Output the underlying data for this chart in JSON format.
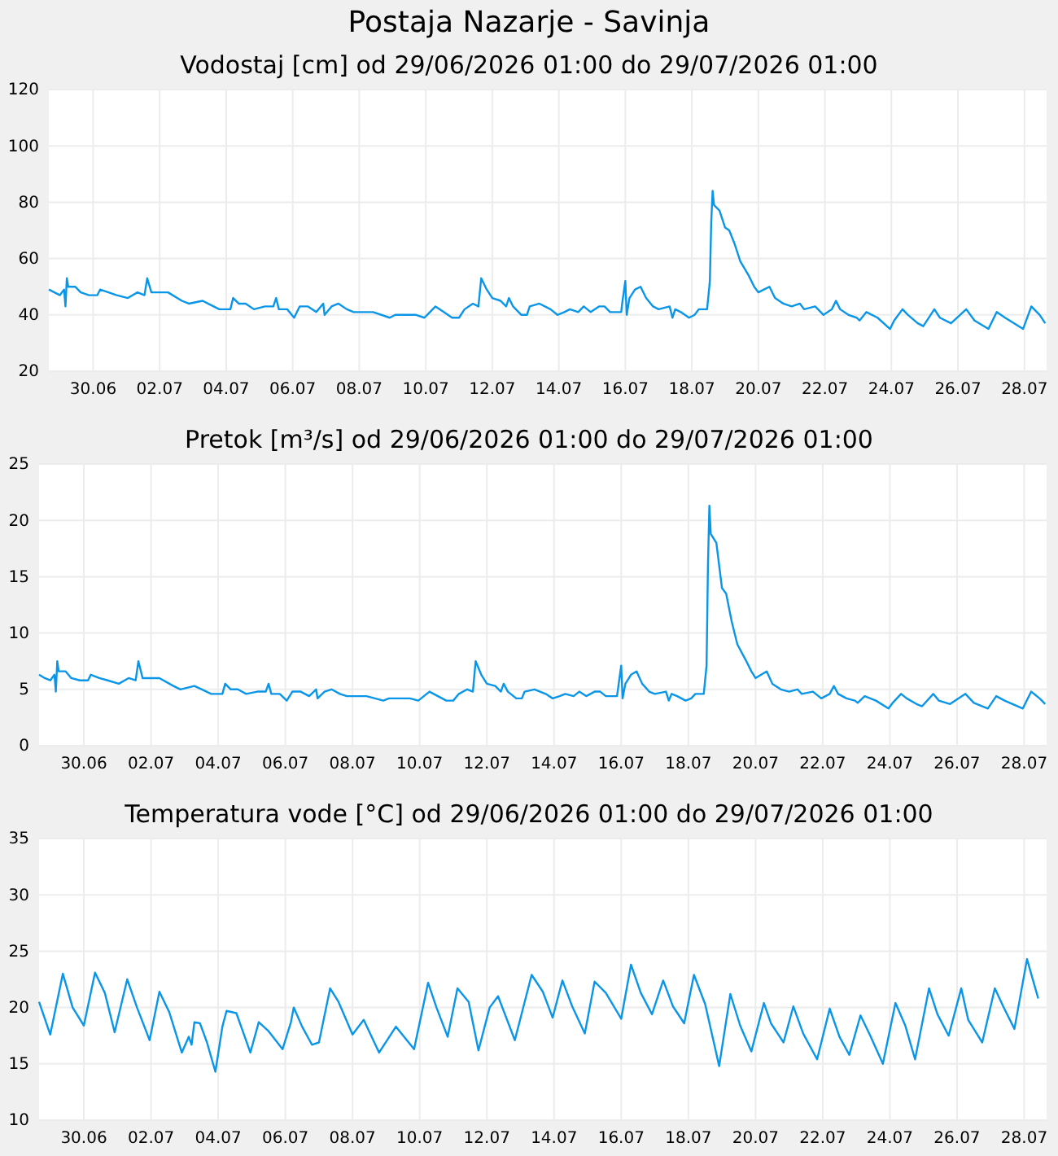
{
  "chart_data": [
    {
      "type": "line",
      "title": "Postaja Nazarje - Savinja",
      "subtitle": "Vodostaj [cm] od 29/06/2026 01:00 do 29/07/2026 01:00",
      "color": "#0a96e8",
      "grid": true,
      "xlim": [
        "2026-06-28T16:00",
        "2026-07-28T16:00"
      ],
      "ylim": [
        20,
        120
      ],
      "yticks": [
        20,
        40,
        60,
        80,
        100,
        120
      ],
      "xticks": [
        {
          "value": "2026-06-30",
          "label": "30.06"
        },
        {
          "value": "2026-07-02",
          "label": "02.07"
        },
        {
          "value": "2026-07-04",
          "label": "04.07"
        },
        {
          "value": "2026-07-06",
          "label": "06.07"
        },
        {
          "value": "2026-07-08",
          "label": "08.07"
        },
        {
          "value": "2026-07-10",
          "label": "10.07"
        },
        {
          "value": "2026-07-12",
          "label": "12.07"
        },
        {
          "value": "2026-07-14",
          "label": "14.07"
        },
        {
          "value": "2026-07-16",
          "label": "16.07"
        },
        {
          "value": "2026-07-18",
          "label": "18.07"
        },
        {
          "value": "2026-07-20",
          "label": "20.07"
        },
        {
          "value": "2026-07-22",
          "label": "22.07"
        },
        {
          "value": "2026-07-24",
          "label": "24.07"
        },
        {
          "value": "2026-07-26",
          "label": "26.07"
        },
        {
          "value": "2026-07-28",
          "label": "28.07"
        }
      ],
      "x": [
        "2026-06-28T16:00",
        "2026-06-28T20:00",
        "2026-06-29T00:00",
        "2026-06-29T03:00",
        "2026-06-29T04:00",
        "2026-06-29T05:00",
        "2026-06-29T06:00",
        "2026-06-29T11:00",
        "2026-06-29T15:00",
        "2026-06-29T21:00",
        "2026-06-30T03:00",
        "2026-06-30T05:00",
        "2026-06-30T11:00",
        "2026-06-30T17:00",
        "2026-07-01T01:00",
        "2026-07-01T08:00",
        "2026-07-01T13:00",
        "2026-07-01T15:00",
        "2026-07-01T18:00",
        "2026-07-02T06:00",
        "2026-07-02T16:00",
        "2026-07-02T21:00",
        "2026-07-03T07:00",
        "2026-07-03T19:00",
        "2026-07-04T03:00",
        "2026-07-04T05:00",
        "2026-07-04T09:00",
        "2026-07-04T14:00",
        "2026-07-04T20:00",
        "2026-07-05T04:00",
        "2026-07-05T10:00",
        "2026-07-05T12:00",
        "2026-07-05T14:00",
        "2026-07-05T20:00",
        "2026-07-06T01:00",
        "2026-07-06T05:00",
        "2026-07-06T11:00",
        "2026-07-06T17:00",
        "2026-07-06T22:00",
        "2026-07-06T23:00",
        "2026-07-07T04:00",
        "2026-07-07T09:00",
        "2026-07-07T15:00",
        "2026-07-07T20:00",
        "2026-07-08T10:00",
        "2026-07-08T22:00",
        "2026-07-09T02:00",
        "2026-07-09T17:00",
        "2026-07-09T23:00",
        "2026-07-10T01:00",
        "2026-07-10T07:00",
        "2026-07-10T13:00",
        "2026-07-10T19:00",
        "2026-07-11T00:00",
        "2026-07-11T04:00",
        "2026-07-11T10:00",
        "2026-07-11T14:00",
        "2026-07-11T16:00",
        "2026-07-11T20:00",
        "2026-07-12T00:00",
        "2026-07-12T06:00",
        "2026-07-12T10:00",
        "2026-07-12T12:00",
        "2026-07-12T15:00",
        "2026-07-12T21:00",
        "2026-07-13T01:00",
        "2026-07-13T03:00",
        "2026-07-13T10:00",
        "2026-07-13T18:00",
        "2026-07-13T23:00",
        "2026-07-14T04:00",
        "2026-07-14T08:00",
        "2026-07-14T14:00",
        "2026-07-14T18:00",
        "2026-07-14T23:00",
        "2026-07-15T05:00",
        "2026-07-15T09:00",
        "2026-07-15T13:00",
        "2026-07-15T21:00",
        "2026-07-15T22:00",
        "2026-07-16T00:00",
        "2026-07-16T01:00",
        "2026-07-16T03:00",
        "2026-07-16T07:00",
        "2026-07-16T11:00",
        "2026-07-16T15:00",
        "2026-07-16T20:00",
        "2026-07-17T00:00",
        "2026-07-17T08:00",
        "2026-07-17T10:00",
        "2026-07-17T12:00",
        "2026-07-17T16:00",
        "2026-07-17T22:00",
        "2026-07-18T02:00",
        "2026-07-18T05:00",
        "2026-07-18T11:00",
        "2026-07-18T13:00",
        "2026-07-18T14:00",
        "2026-07-18T15:00",
        "2026-07-18T16:00",
        "2026-07-18T20:00",
        "2026-07-19T00:00",
        "2026-07-19T03:00",
        "2026-07-19T07:00",
        "2026-07-19T11:00",
        "2026-07-19T17:00",
        "2026-07-19T21:00",
        "2026-07-20T00:00",
        "2026-07-20T04:00",
        "2026-07-20T08:00",
        "2026-07-20T12:00",
        "2026-07-20T18:00",
        "2026-07-21T00:00",
        "2026-07-21T06:00",
        "2026-07-21T09:00",
        "2026-07-21T17:00",
        "2026-07-21T23:00",
        "2026-07-22T05:00",
        "2026-07-22T08:00",
        "2026-07-22T11:00",
        "2026-07-22T17:00",
        "2026-07-22T23:00",
        "2026-07-23T01:00",
        "2026-07-23T06:00",
        "2026-07-23T14:00",
        "2026-07-23T23:00",
        "2026-07-24T02:00",
        "2026-07-24T08:00",
        "2026-07-24T12:00",
        "2026-07-24T19:00",
        "2026-07-24T23:00",
        "2026-07-25T07:00",
        "2026-07-25T11:00",
        "2026-07-25T19:00",
        "2026-07-26T06:00",
        "2026-07-26T12:00",
        "2026-07-26T22:00",
        "2026-07-27T04:00",
        "2026-07-27T10:00",
        "2026-07-27T23:00",
        "2026-07-28T05:00",
        "2026-07-28T11:00",
        "2026-07-28T15:00"
      ],
      "values": [
        49,
        48,
        47,
        49,
        43,
        53,
        50,
        50,
        48,
        47,
        47,
        49,
        48,
        47,
        46,
        48,
        47,
        53,
        48,
        48,
        45,
        44,
        45,
        42,
        42,
        46,
        44,
        44,
        42,
        43,
        43,
        46,
        42,
        42,
        39,
        43,
        43,
        41,
        44,
        40,
        43,
        44,
        42,
        41,
        41,
        39,
        40,
        40,
        39,
        40,
        43,
        41,
        39,
        39,
        42,
        44,
        43,
        53,
        49,
        46,
        45,
        43,
        46,
        43,
        40,
        40,
        43,
        44,
        42,
        40,
        41,
        42,
        41,
        43,
        41,
        43,
        43,
        41,
        41,
        45,
        52,
        40,
        46,
        49,
        50,
        46,
        43,
        42,
        43,
        39,
        42,
        41,
        39,
        40,
        42,
        42,
        52,
        73,
        84,
        79,
        77,
        71,
        70,
        65,
        59,
        54,
        50,
        48,
        49,
        50,
        46,
        44,
        43,
        44,
        42,
        43,
        40,
        42,
        45,
        42,
        40,
        39,
        38,
        41,
        39,
        35,
        38,
        42,
        40,
        37,
        36,
        42,
        39,
        37,
        42,
        38,
        35,
        41,
        39,
        35,
        43,
        40,
        37
      ]
    },
    {
      "type": "line",
      "title": "Pretok [m³/s] od 29/06/2026 01:00 do 29/07/2026 01:00",
      "color": "#0a96e8",
      "grid": true,
      "xlim": [
        "2026-06-28T16:00",
        "2026-07-28T16:00"
      ],
      "ylim": [
        0,
        25
      ],
      "yticks": [
        0,
        5,
        10,
        15,
        20,
        25
      ],
      "xticks": [
        {
          "value": "2026-06-30",
          "label": "30.06"
        },
        {
          "value": "2026-07-02",
          "label": "02.07"
        },
        {
          "value": "2026-07-04",
          "label": "04.07"
        },
        {
          "value": "2026-07-06",
          "label": "06.07"
        },
        {
          "value": "2026-07-08",
          "label": "08.07"
        },
        {
          "value": "2026-07-10",
          "label": "10.07"
        },
        {
          "value": "2026-07-12",
          "label": "12.07"
        },
        {
          "value": "2026-07-14",
          "label": "14.07"
        },
        {
          "value": "2026-07-16",
          "label": "16.07"
        },
        {
          "value": "2026-07-18",
          "label": "18.07"
        },
        {
          "value": "2026-07-20",
          "label": "20.07"
        },
        {
          "value": "2026-07-22",
          "label": "22.07"
        },
        {
          "value": "2026-07-24",
          "label": "24.07"
        },
        {
          "value": "2026-07-26",
          "label": "26.07"
        },
        {
          "value": "2026-07-28",
          "label": "28.07"
        }
      ],
      "x": [
        "2026-06-28T16:00",
        "2026-06-28T20:00",
        "2026-06-29T00:00",
        "2026-06-29T03:00",
        "2026-06-29T04:00",
        "2026-06-29T05:00",
        "2026-06-29T06:00",
        "2026-06-29T11:00",
        "2026-06-29T15:00",
        "2026-06-29T21:00",
        "2026-06-30T03:00",
        "2026-06-30T05:00",
        "2026-06-30T11:00",
        "2026-06-30T17:00",
        "2026-07-01T01:00",
        "2026-07-01T08:00",
        "2026-07-01T13:00",
        "2026-07-01T15:00",
        "2026-07-01T18:00",
        "2026-07-02T06:00",
        "2026-07-02T16:00",
        "2026-07-02T21:00",
        "2026-07-03T07:00",
        "2026-07-03T19:00",
        "2026-07-04T03:00",
        "2026-07-04T05:00",
        "2026-07-04T09:00",
        "2026-07-04T14:00",
        "2026-07-04T20:00",
        "2026-07-05T04:00",
        "2026-07-05T10:00",
        "2026-07-05T12:00",
        "2026-07-05T14:00",
        "2026-07-05T20:00",
        "2026-07-06T01:00",
        "2026-07-06T05:00",
        "2026-07-06T11:00",
        "2026-07-06T17:00",
        "2026-07-06T22:00",
        "2026-07-06T23:00",
        "2026-07-07T04:00",
        "2026-07-07T09:00",
        "2026-07-07T15:00",
        "2026-07-07T20:00",
        "2026-07-08T10:00",
        "2026-07-08T22:00",
        "2026-07-09T02:00",
        "2026-07-09T17:00",
        "2026-07-09T23:00",
        "2026-07-10T01:00",
        "2026-07-10T07:00",
        "2026-07-10T13:00",
        "2026-07-10T19:00",
        "2026-07-11T00:00",
        "2026-07-11T04:00",
        "2026-07-11T10:00",
        "2026-07-11T14:00",
        "2026-07-11T16:00",
        "2026-07-11T20:00",
        "2026-07-12T00:00",
        "2026-07-12T06:00",
        "2026-07-12T10:00",
        "2026-07-12T12:00",
        "2026-07-12T15:00",
        "2026-07-12T21:00",
        "2026-07-13T01:00",
        "2026-07-13T03:00",
        "2026-07-13T10:00",
        "2026-07-13T18:00",
        "2026-07-13T23:00",
        "2026-07-14T04:00",
        "2026-07-14T08:00",
        "2026-07-14T14:00",
        "2026-07-14T18:00",
        "2026-07-14T23:00",
        "2026-07-15T05:00",
        "2026-07-15T09:00",
        "2026-07-15T13:00",
        "2026-07-15T21:00",
        "2026-07-15T22:00",
        "2026-07-16T00:00",
        "2026-07-16T01:00",
        "2026-07-16T03:00",
        "2026-07-16T07:00",
        "2026-07-16T11:00",
        "2026-07-16T15:00",
        "2026-07-16T20:00",
        "2026-07-17T00:00",
        "2026-07-17T08:00",
        "2026-07-17T10:00",
        "2026-07-17T12:00",
        "2026-07-17T16:00",
        "2026-07-17T22:00",
        "2026-07-18T02:00",
        "2026-07-18T05:00",
        "2026-07-18T11:00",
        "2026-07-18T13:00",
        "2026-07-18T14:00",
        "2026-07-18T15:00",
        "2026-07-18T16:00",
        "2026-07-18T20:00",
        "2026-07-19T00:00",
        "2026-07-19T03:00",
        "2026-07-19T07:00",
        "2026-07-19T11:00",
        "2026-07-19T17:00",
        "2026-07-19T21:00",
        "2026-07-20T00:00",
        "2026-07-20T04:00",
        "2026-07-20T08:00",
        "2026-07-20T12:00",
        "2026-07-20T18:00",
        "2026-07-21T00:00",
        "2026-07-21T06:00",
        "2026-07-21T09:00",
        "2026-07-21T17:00",
        "2026-07-21T23:00",
        "2026-07-22T05:00",
        "2026-07-22T08:00",
        "2026-07-22T11:00",
        "2026-07-22T17:00",
        "2026-07-22T23:00",
        "2026-07-23T01:00",
        "2026-07-23T06:00",
        "2026-07-23T14:00",
        "2026-07-23T23:00",
        "2026-07-24T02:00",
        "2026-07-24T08:00",
        "2026-07-24T12:00",
        "2026-07-24T19:00",
        "2026-07-24T23:00",
        "2026-07-25T07:00",
        "2026-07-25T11:00",
        "2026-07-25T19:00",
        "2026-07-26T06:00",
        "2026-07-26T12:00",
        "2026-07-26T22:00",
        "2026-07-27T04:00",
        "2026-07-27T10:00",
        "2026-07-27T23:00",
        "2026-07-28T05:00",
        "2026-07-28T11:00",
        "2026-07-28T15:00"
      ],
      "values": [
        6.3,
        6,
        5.8,
        6.3,
        4.8,
        7.5,
        6.6,
        6.6,
        6,
        5.8,
        5.8,
        6.3,
        6,
        5.8,
        5.5,
        6,
        5.8,
        7.5,
        6,
        6,
        5.3,
        5,
        5.3,
        4.6,
        4.6,
        5.5,
        5,
        5,
        4.6,
        4.8,
        4.8,
        5.5,
        4.6,
        4.6,
        4,
        4.8,
        4.8,
        4.4,
        5,
        4.2,
        4.8,
        5,
        4.6,
        4.4,
        4.4,
        4,
        4.2,
        4.2,
        4,
        4.2,
        4.8,
        4.4,
        4,
        4,
        4.6,
        5,
        4.8,
        7.5,
        6.3,
        5.5,
        5.3,
        4.8,
        5.5,
        4.8,
        4.2,
        4.2,
        4.8,
        5,
        4.6,
        4.2,
        4.4,
        4.6,
        4.4,
        4.8,
        4.4,
        4.8,
        4.8,
        4.4,
        4.4,
        5.3,
        7.1,
        4.2,
        5.5,
        6.3,
        6.6,
        5.5,
        4.8,
        4.6,
        4.8,
        4,
        4.6,
        4.4,
        4,
        4.2,
        4.6,
        4.6,
        7.1,
        16,
        21.3,
        18.8,
        18,
        14,
        13.5,
        11,
        9,
        7.6,
        6.6,
        6,
        6.3,
        6.6,
        5.5,
        5,
        4.8,
        5,
        4.6,
        4.8,
        4.2,
        4.6,
        5.3,
        4.6,
        4.2,
        4,
        3.8,
        4.4,
        4,
        3.3,
        3.8,
        4.6,
        4.2,
        3.7,
        3.5,
        4.6,
        4,
        3.7,
        4.6,
        3.8,
        3.3,
        4.4,
        4,
        3.3,
        4.8,
        4.2,
        3.7
      ]
    },
    {
      "type": "line",
      "title": "Temperatura vode [°C] od 29/06/2026 01:00 do 29/07/2026 01:00",
      "color": "#0a96e8",
      "grid": true,
      "xlim": [
        "2026-06-28T16:00",
        "2026-07-28T16:00"
      ],
      "ylim": [
        10,
        35
      ],
      "yticks": [
        10,
        15,
        20,
        25,
        30,
        35
      ],
      "xticks": [
        {
          "value": "2026-06-30",
          "label": "30.06"
        },
        {
          "value": "2026-07-02",
          "label": "02.07"
        },
        {
          "value": "2026-07-04",
          "label": "04.07"
        },
        {
          "value": "2026-07-06",
          "label": "06.07"
        },
        {
          "value": "2026-07-08",
          "label": "08.07"
        },
        {
          "value": "2026-07-10",
          "label": "10.07"
        },
        {
          "value": "2026-07-12",
          "label": "12.07"
        },
        {
          "value": "2026-07-14",
          "label": "14.07"
        },
        {
          "value": "2026-07-16",
          "label": "16.07"
        },
        {
          "value": "2026-07-18",
          "label": "18.07"
        },
        {
          "value": "2026-07-20",
          "label": "20.07"
        },
        {
          "value": "2026-07-22",
          "label": "22.07"
        },
        {
          "value": "2026-07-24",
          "label": "24.07"
        },
        {
          "value": "2026-07-26",
          "label": "26.07"
        },
        {
          "value": "2026-07-28",
          "label": "28.07"
        }
      ],
      "x": [
        "2026-06-28T16:00",
        "2026-06-29T00:00",
        "2026-06-29T09:00",
        "2026-06-29T16:00",
        "2026-06-30T00:00",
        "2026-06-30T08:00",
        "2026-06-30T15:00",
        "2026-06-30T22:00",
        "2026-07-01T07:00",
        "2026-07-01T14:00",
        "2026-07-01T23:00",
        "2026-07-02T06:00",
        "2026-07-02T13:00",
        "2026-07-02T22:00",
        "2026-07-03T03:00",
        "2026-07-03T05:00",
        "2026-07-03T07:00",
        "2026-07-03T11:00",
        "2026-07-03T16:00",
        "2026-07-03T22:00",
        "2026-07-04T03:00",
        "2026-07-04T06:00",
        "2026-07-04T13:00",
        "2026-07-04T23:00",
        "2026-07-05T05:00",
        "2026-07-05T12:00",
        "2026-07-05T22:00",
        "2026-07-06T04:00",
        "2026-07-06T06:00",
        "2026-07-06T12:00",
        "2026-07-06T19:00",
        "2026-07-07T00:00",
        "2026-07-07T08:00",
        "2026-07-07T14:00",
        "2026-07-08T00:00",
        "2026-07-08T08:00",
        "2026-07-08T19:00",
        "2026-07-09T07:00",
        "2026-07-09T20:00",
        "2026-07-10T06:00",
        "2026-07-10T12:00",
        "2026-07-10T20:00",
        "2026-07-11T03:00",
        "2026-07-11T11:00",
        "2026-07-11T18:00",
        "2026-07-12T02:00",
        "2026-07-12T08:00",
        "2026-07-12T20:00",
        "2026-07-13T08:00",
        "2026-07-13T16:00",
        "2026-07-13T23:00",
        "2026-07-14T06:00",
        "2026-07-14T13:00",
        "2026-07-14T22:00",
        "2026-07-15T05:00",
        "2026-07-15T13:00",
        "2026-07-16T00:00",
        "2026-07-16T07:00",
        "2026-07-16T14:00",
        "2026-07-16T22:00",
        "2026-07-17T06:00",
        "2026-07-17T13:00",
        "2026-07-17T21:00",
        "2026-07-18T04:00",
        "2026-07-18T12:00",
        "2026-07-18T22:00",
        "2026-07-19T06:00",
        "2026-07-19T13:00",
        "2026-07-19T21:00",
        "2026-07-20T06:00",
        "2026-07-20T11:00",
        "2026-07-20T20:00",
        "2026-07-21T03:00",
        "2026-07-21T10:00",
        "2026-07-21T20:00",
        "2026-07-22T05:00",
        "2026-07-22T12:00",
        "2026-07-22T19:00",
        "2026-07-23T03:00",
        "2026-07-23T10:00",
        "2026-07-23T19:00",
        "2026-07-24T04:00",
        "2026-07-24T11:00",
        "2026-07-24T18:00",
        "2026-07-25T04:00",
        "2026-07-25T10:00",
        "2026-07-25T18:00",
        "2026-07-26T03:00",
        "2026-07-26T08:00",
        "2026-07-26T18:00",
        "2026-07-27T03:00",
        "2026-07-27T09:00",
        "2026-07-27T17:00",
        "2026-07-28T02:00",
        "2026-07-28T10:00"
      ],
      "values": [
        20.5,
        17.6,
        23,
        20,
        18.4,
        23.1,
        21.3,
        17.8,
        22.5,
        20,
        17.1,
        21.4,
        19.6,
        16,
        17.4,
        16.7,
        18.7,
        18.6,
        16.9,
        14.3,
        18.3,
        19.7,
        19.5,
        16,
        18.7,
        17.9,
        16.3,
        18.7,
        20,
        18.3,
        16.7,
        16.9,
        21.7,
        20.5,
        17.6,
        18.9,
        16,
        18.3,
        16.3,
        22.2,
        20,
        17.4,
        21.7,
        20.5,
        16.2,
        20,
        21,
        17.1,
        22.9,
        21.4,
        19.1,
        22.4,
        20.1,
        17.7,
        22.3,
        21.3,
        19,
        23.8,
        21.3,
        19.4,
        22.4,
        20.1,
        18.6,
        22.9,
        20.3,
        14.8,
        21.2,
        18.4,
        16.1,
        20.4,
        18.6,
        16.9,
        20.1,
        17.7,
        15.4,
        19.9,
        17.4,
        15.8,
        19.3,
        17.5,
        15,
        20.4,
        18.4,
        15.4,
        21.7,
        19.4,
        17.5,
        21.7,
        18.9,
        16.9,
        21.7,
        20.1,
        18.1,
        24.3,
        20.8
      ]
    }
  ]
}
